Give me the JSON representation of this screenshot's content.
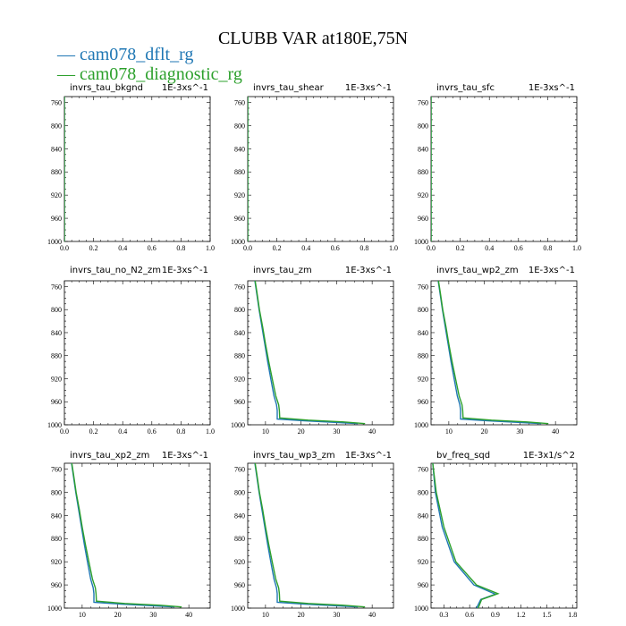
{
  "title": "CLUBB VAR at180E,75N",
  "legend": [
    {
      "label": "cam078_dflt_rg",
      "color": "#1f77b4"
    },
    {
      "label": "cam078_diagnostic_rg",
      "color": "#2ca02c"
    }
  ],
  "chart_data": [
    {
      "type": "line",
      "title": "invrs_tau_bkgnd",
      "units": "1E-3xs^-1",
      "xlim": [
        0.0,
        1.0
      ],
      "ylim": [
        1000,
        750
      ],
      "y_inverted": true,
      "x_ticks": [
        "0.0",
        "0.2",
        "0.4",
        "0.6",
        "0.8",
        "1.0"
      ],
      "y_ticks": [
        "760",
        "800",
        "840",
        "880",
        "920",
        "960",
        "1000"
      ],
      "series": [
        {
          "name": "cam078_dflt_rg",
          "points": [
            [
              0,
              750
            ],
            [
              0,
              1000
            ]
          ]
        },
        {
          "name": "cam078_diagnostic_rg",
          "points": [
            [
              0,
              750
            ],
            [
              0,
              1000
            ]
          ]
        }
      ]
    },
    {
      "type": "line",
      "title": "invrs_tau_shear",
      "units": "1E-3xs^-1",
      "xlim": [
        0.0,
        1.0
      ],
      "ylim": [
        1000,
        750
      ],
      "y_inverted": true,
      "x_ticks": [
        "0.0",
        "0.2",
        "0.4",
        "0.6",
        "0.8",
        "1.0"
      ],
      "y_ticks": [
        "760",
        "800",
        "840",
        "880",
        "920",
        "960",
        "1000"
      ],
      "series": [
        {
          "name": "cam078_dflt_rg",
          "points": [
            [
              0,
              750
            ],
            [
              0,
              1000
            ]
          ]
        },
        {
          "name": "cam078_diagnostic_rg",
          "points": [
            [
              0,
              750
            ],
            [
              0,
              1000
            ]
          ]
        }
      ]
    },
    {
      "type": "line",
      "title": "invrs_tau_sfc",
      "units": "1E-3xs^-1",
      "xlim": [
        0.0,
        1.0
      ],
      "ylim": [
        1000,
        750
      ],
      "y_inverted": true,
      "x_ticks": [
        "0.0",
        "0.2",
        "0.4",
        "0.6",
        "0.8",
        "1.0"
      ],
      "y_ticks": [
        "760",
        "800",
        "840",
        "880",
        "920",
        "960",
        "1000"
      ],
      "series": [
        {
          "name": "cam078_dflt_rg",
          "points": [
            [
              0,
              750
            ],
            [
              0,
              1000
            ]
          ]
        },
        {
          "name": "cam078_diagnostic_rg",
          "points": [
            [
              0,
              750
            ],
            [
              0,
              1000
            ]
          ]
        }
      ]
    },
    {
      "type": "line",
      "title": "invrs_tau_no_N2_zm",
      "units": "1E-3xs^-1",
      "xlim": [
        0.0,
        1.0
      ],
      "ylim": [
        1000,
        750
      ],
      "y_inverted": true,
      "x_ticks": [
        "0.0",
        "0.2",
        "0.4",
        "0.6",
        "0.8",
        "1.0"
      ],
      "y_ticks": [
        "760",
        "800",
        "840",
        "880",
        "920",
        "960",
        "1000"
      ],
      "series": [
        {
          "name": "cam078_dflt_rg",
          "points": []
        },
        {
          "name": "cam078_diagnostic_rg",
          "points": []
        }
      ]
    },
    {
      "type": "line",
      "title": "invrs_tau_zm",
      "units": "1E-3xs^-1",
      "xlim": [
        5,
        46
      ],
      "ylim": [
        1000,
        750
      ],
      "y_inverted": true,
      "x_ticks": [
        "10",
        "20",
        "30",
        "40"
      ],
      "y_ticks": [
        "760",
        "800",
        "840",
        "880",
        "920",
        "960",
        "1000"
      ],
      "series": [
        {
          "name": "cam078_dflt_rg",
          "points": [
            [
              7.0,
              750
            ],
            [
              7.5,
              770
            ],
            [
              8.2,
              800
            ],
            [
              9.0,
              830
            ],
            [
              9.8,
              860
            ],
            [
              10.6,
              890
            ],
            [
              11.5,
              920
            ],
            [
              12.4,
              950
            ],
            [
              13.1,
              965
            ],
            [
              13.3,
              975
            ],
            [
              13.3,
              990
            ],
            [
              21,
              993
            ],
            [
              30,
              996
            ],
            [
              36,
              998
            ]
          ]
        },
        {
          "name": "cam078_diagnostic_rg",
          "points": [
            [
              7.1,
              750
            ],
            [
              7.6,
              770
            ],
            [
              8.3,
              800
            ],
            [
              9.2,
              830
            ],
            [
              10.0,
              860
            ],
            [
              10.9,
              890
            ],
            [
              11.9,
              920
            ],
            [
              12.9,
              950
            ],
            [
              13.7,
              965
            ],
            [
              13.9,
              975
            ],
            [
              14.0,
              988
            ],
            [
              22,
              992
            ],
            [
              32,
              995
            ],
            [
              38,
              998
            ]
          ]
        }
      ]
    },
    {
      "type": "line",
      "title": "invrs_tau_wp2_zm",
      "units": "1E-3xs^-1",
      "xlim": [
        5,
        46
      ],
      "ylim": [
        1000,
        750
      ],
      "y_inverted": true,
      "x_ticks": [
        "10",
        "20",
        "30",
        "40"
      ],
      "y_ticks": [
        "760",
        "800",
        "840",
        "880",
        "920",
        "960",
        "1000"
      ],
      "series": [
        {
          "name": "cam078_dflt_rg",
          "points": [
            [
              7.0,
              750
            ],
            [
              7.5,
              770
            ],
            [
              8.2,
              800
            ],
            [
              9.0,
              830
            ],
            [
              9.8,
              860
            ],
            [
              10.6,
              890
            ],
            [
              11.5,
              920
            ],
            [
              12.4,
              950
            ],
            [
              13.1,
              965
            ],
            [
              13.3,
              975
            ],
            [
              13.3,
              990
            ],
            [
              21,
              993
            ],
            [
              30,
              996
            ],
            [
              36,
              998
            ]
          ]
        },
        {
          "name": "cam078_diagnostic_rg",
          "points": [
            [
              7.1,
              750
            ],
            [
              7.6,
              770
            ],
            [
              8.3,
              800
            ],
            [
              9.2,
              830
            ],
            [
              10.0,
              860
            ],
            [
              10.9,
              890
            ],
            [
              11.9,
              920
            ],
            [
              12.9,
              950
            ],
            [
              13.7,
              965
            ],
            [
              13.9,
              975
            ],
            [
              14.0,
              988
            ],
            [
              22,
              992
            ],
            [
              32,
              995
            ],
            [
              38,
              998
            ]
          ]
        }
      ]
    },
    {
      "type": "line",
      "title": "invrs_tau_xp2_zm",
      "units": "1E-3xs^-1",
      "xlim": [
        5,
        46
      ],
      "ylim": [
        1000,
        750
      ],
      "y_inverted": true,
      "x_ticks": [
        "10",
        "20",
        "30",
        "40"
      ],
      "y_ticks": [
        "760",
        "800",
        "840",
        "880",
        "920",
        "960",
        "1000"
      ],
      "series": [
        {
          "name": "cam078_dflt_rg",
          "points": [
            [
              7.0,
              750
            ],
            [
              7.5,
              770
            ],
            [
              8.2,
              800
            ],
            [
              9.0,
              830
            ],
            [
              9.8,
              860
            ],
            [
              10.6,
              890
            ],
            [
              11.5,
              920
            ],
            [
              12.4,
              950
            ],
            [
              13.1,
              965
            ],
            [
              13.3,
              975
            ],
            [
              13.3,
              990
            ],
            [
              21,
              993
            ],
            [
              30,
              996
            ],
            [
              36,
              998
            ]
          ]
        },
        {
          "name": "cam078_diagnostic_rg",
          "points": [
            [
              7.1,
              750
            ],
            [
              7.6,
              770
            ],
            [
              8.3,
              800
            ],
            [
              9.2,
              830
            ],
            [
              10.0,
              860
            ],
            [
              10.9,
              890
            ],
            [
              11.9,
              920
            ],
            [
              12.9,
              950
            ],
            [
              13.7,
              965
            ],
            [
              13.9,
              975
            ],
            [
              14.0,
              988
            ],
            [
              22,
              992
            ],
            [
              32,
              995
            ],
            [
              38,
              998
            ]
          ]
        }
      ]
    },
    {
      "type": "line",
      "title": "invrs_tau_wp3_zm",
      "units": "1E-3xs^-1",
      "xlim": [
        5,
        46
      ],
      "ylim": [
        1000,
        750
      ],
      "y_inverted": true,
      "x_ticks": [
        "10",
        "20",
        "30",
        "40"
      ],
      "y_ticks": [
        "760",
        "800",
        "840",
        "880",
        "920",
        "960",
        "1000"
      ],
      "series": [
        {
          "name": "cam078_dflt_rg",
          "points": [
            [
              7.0,
              750
            ],
            [
              7.5,
              770
            ],
            [
              8.2,
              800
            ],
            [
              9.0,
              830
            ],
            [
              9.8,
              860
            ],
            [
              10.6,
              890
            ],
            [
              11.5,
              920
            ],
            [
              12.4,
              950
            ],
            [
              13.1,
              965
            ],
            [
              13.3,
              975
            ],
            [
              13.3,
              990
            ],
            [
              21,
              993
            ],
            [
              30,
              996
            ],
            [
              36,
              998
            ]
          ]
        },
        {
          "name": "cam078_diagnostic_rg",
          "points": [
            [
              7.1,
              750
            ],
            [
              7.6,
              770
            ],
            [
              8.3,
              800
            ],
            [
              9.2,
              830
            ],
            [
              10.0,
              860
            ],
            [
              10.9,
              890
            ],
            [
              11.9,
              920
            ],
            [
              12.9,
              950
            ],
            [
              13.7,
              965
            ],
            [
              13.9,
              975
            ],
            [
              14.0,
              988
            ],
            [
              22,
              992
            ],
            [
              32,
              995
            ],
            [
              38,
              998
            ]
          ]
        }
      ]
    },
    {
      "type": "line",
      "title": "bv_freq_sqd",
      "units": "1E-3x1/s^2",
      "xlim": [
        0.15,
        1.85
      ],
      "ylim": [
        1000,
        750
      ],
      "y_inverted": true,
      "x_ticks": [
        "0.3",
        "0.6",
        "0.9",
        "1.2",
        "1.5",
        "1.8"
      ],
      "y_ticks": [
        "760",
        "800",
        "840",
        "880",
        "920",
        "960",
        "1000"
      ],
      "series": [
        {
          "name": "cam078_dflt_rg",
          "points": [
            [
              0.17,
              750
            ],
            [
              0.2,
              800
            ],
            [
              0.28,
              860
            ],
            [
              0.42,
              920
            ],
            [
              0.65,
              960
            ],
            [
              0.9,
              976
            ],
            [
              0.73,
              985
            ],
            [
              0.68,
              1000
            ]
          ]
        },
        {
          "name": "cam078_diagnostic_rg",
          "points": [
            [
              0.17,
              750
            ],
            [
              0.21,
              800
            ],
            [
              0.3,
              860
            ],
            [
              0.44,
              920
            ],
            [
              0.68,
              960
            ],
            [
              0.93,
              975
            ],
            [
              0.74,
              985
            ],
            [
              0.7,
              1000
            ]
          ]
        }
      ]
    }
  ]
}
